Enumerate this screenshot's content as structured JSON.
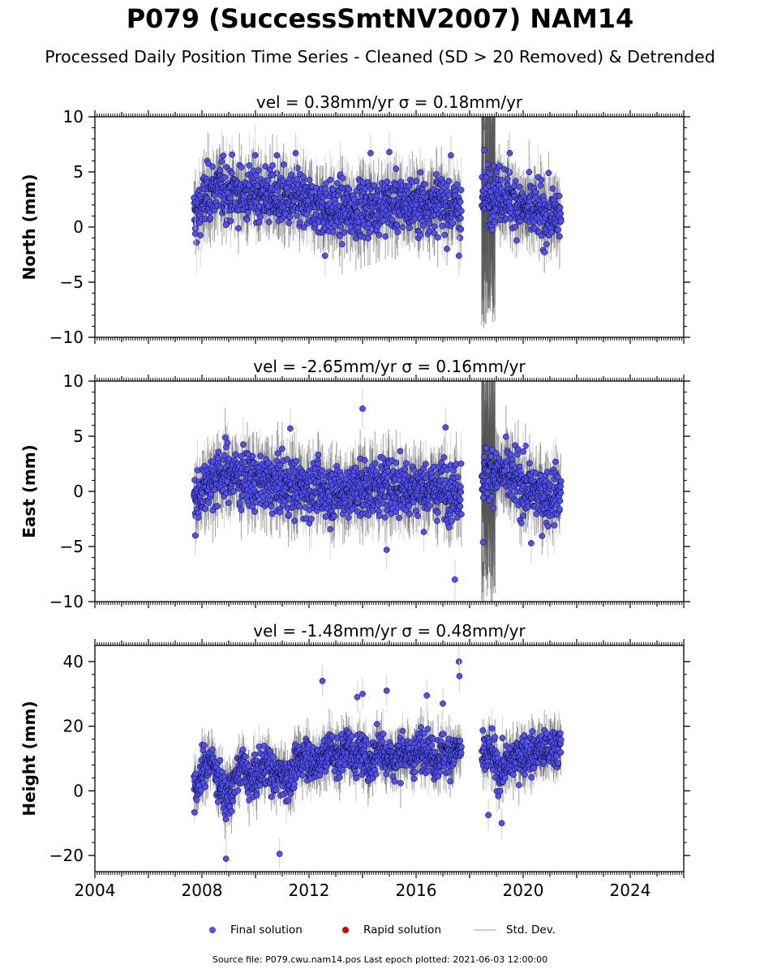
{
  "figure": {
    "title": "P079 (SuccessSmtNV2007) NAM14",
    "subtitle": "Processed Daily Position Time Series - Cleaned (SD > 20 Removed) & Detrended",
    "source_note": "Source file: P079.cwu.nam14.pos  Last epoch plotted: 2021-06-03 12:00:00"
  },
  "legend": {
    "items": [
      {
        "label": "Final solution",
        "kind": "dot",
        "color": "#4f4ff5"
      },
      {
        "label": "Rapid solution",
        "kind": "dot",
        "color": "#dd0000"
      },
      {
        "label": "Std. Dev.",
        "kind": "line",
        "color": "#cfcfcf"
      }
    ]
  },
  "colors": {
    "marker_fill": "#4f4ff5",
    "marker_edge": "#000000",
    "errorbar_dark": "#555555",
    "errorbar_light": "#cfcfcf"
  },
  "chart_data": [
    {
      "type": "scatter",
      "title": "vel = 0.38mm/yr   σ = 0.18mm/yr",
      "ylabel": "North (mm)",
      "ylim": [
        -10,
        10
      ],
      "yticks": [
        -10,
        -5,
        0,
        5,
        10
      ],
      "xlim": [
        2004,
        2026
      ],
      "xticks": [],
      "data_span": [
        2007.7,
        2021.42
      ],
      "gap": [
        2017.7,
        2018.45
      ],
      "series": [
        {
          "name": "Final solution",
          "x": [
            2007.8,
            2008.2,
            2008.6,
            2009.0,
            2009.5,
            2010.0,
            2010.5,
            2011.0,
            2011.5,
            2012.0,
            2012.5,
            2013.0,
            2013.5,
            2014.0,
            2014.5,
            2015.0,
            2015.5,
            2016.0,
            2016.5,
            2017.0,
            2017.5,
            2018.5,
            2018.9,
            2019.3,
            2019.7,
            2020.1,
            2020.5,
            2020.9,
            2021.3
          ],
          "y": [
            1.0,
            3.0,
            3.5,
            3.2,
            3.0,
            3.1,
            2.8,
            2.5,
            2.4,
            2.0,
            1.8,
            1.6,
            1.6,
            1.7,
            1.9,
            2.1,
            2.1,
            2.0,
            2.2,
            2.0,
            1.8,
            2.5,
            3.2,
            3.0,
            2.2,
            1.5,
            1.3,
            1.0,
            1.0
          ]
        }
      ],
      "outliers": [
        [
          2007.75,
          -0.6
        ],
        [
          2008.9,
          0.2
        ],
        [
          2010.8,
          6.5
        ],
        [
          2011.5,
          6.7
        ],
        [
          2012.6,
          -2.6
        ],
        [
          2014.3,
          6.7
        ],
        [
          2015.0,
          6.8
        ],
        [
          2017.3,
          6.5
        ],
        [
          2017.6,
          -2.6
        ],
        [
          2018.55,
          7.0
        ],
        [
          2019.5,
          6.7
        ]
      ],
      "std_dev_range": [
        1.5,
        3.0
      ],
      "noisy_segment": {
        "x": [
          2018.45,
          2018.95
        ],
        "range": [
          -10,
          10
        ]
      }
    },
    {
      "type": "scatter",
      "title": "vel = -2.65mm/yr   σ = 0.16mm/yr",
      "ylabel": "East (mm)",
      "ylim": [
        -10,
        10
      ],
      "yticks": [
        -10,
        -5,
        0,
        5,
        10
      ],
      "xlim": [
        2004,
        2026
      ],
      "xticks": [],
      "data_span": [
        2007.7,
        2021.42
      ],
      "gap": [
        2017.7,
        2018.45
      ],
      "series": [
        {
          "name": "Final solution",
          "x": [
            2007.8,
            2008.2,
            2008.6,
            2009.0,
            2009.5,
            2010.0,
            2010.5,
            2011.0,
            2011.5,
            2012.0,
            2012.5,
            2013.0,
            2013.5,
            2014.0,
            2014.5,
            2015.0,
            2015.5,
            2016.0,
            2016.5,
            2017.0,
            2017.5,
            2018.5,
            2018.9,
            2019.3,
            2019.7,
            2020.1,
            2020.5,
            2020.9,
            2021.3
          ],
          "y": [
            -0.5,
            0.8,
            1.4,
            1.6,
            1.3,
            0.9,
            0.7,
            0.5,
            0.4,
            0.3,
            0.1,
            -0.1,
            0.0,
            0.3,
            0.4,
            0.5,
            0.4,
            0.3,
            0.2,
            0.2,
            0.0,
            1.5,
            1.8,
            1.5,
            0.9,
            0.2,
            -0.2,
            -0.4,
            -0.2
          ]
        }
      ],
      "outliers": [
        [
          2007.75,
          -4.0
        ],
        [
          2011.3,
          5.7
        ],
        [
          2014.0,
          7.5
        ],
        [
          2014.9,
          -5.3
        ],
        [
          2017.1,
          5.8
        ],
        [
          2017.45,
          -8.0
        ],
        [
          2018.5,
          -4.6
        ],
        [
          2020.3,
          -4.7
        ],
        [
          2020.0,
          3.6
        ]
      ],
      "std_dev_range": [
        1.5,
        3.0
      ],
      "noisy_segment": {
        "x": [
          2018.45,
          2018.95
        ],
        "range": [
          -10,
          10
        ]
      }
    },
    {
      "type": "scatter",
      "title": "vel = -1.48mm/yr   σ = 0.48mm/yr",
      "ylabel": "Height (mm)",
      "ylim": [
        -25,
        45
      ],
      "yticks": [
        -20,
        0,
        20,
        40
      ],
      "xlim": [
        2004,
        2026
      ],
      "xticks": [
        2004,
        2008,
        2012,
        2016,
        2020,
        2024
      ],
      "data_span": [
        2007.7,
        2021.42
      ],
      "gap": [
        2017.7,
        2018.45
      ],
      "series": [
        {
          "name": "Final solution",
          "x": [
            2007.8,
            2008.0,
            2008.3,
            2008.6,
            2008.9,
            2009.2,
            2009.5,
            2009.8,
            2010.1,
            2010.4,
            2010.7,
            2011.0,
            2011.3,
            2011.6,
            2011.9,
            2012.2,
            2012.5,
            2012.8,
            2013.1,
            2013.4,
            2013.7,
            2014.0,
            2014.3,
            2014.6,
            2014.9,
            2015.2,
            2015.5,
            2015.8,
            2016.1,
            2016.4,
            2016.7,
            2017.0,
            2017.3,
            2017.6,
            2018.5,
            2018.8,
            2019.1,
            2019.4,
            2019.7,
            2020.0,
            2020.3,
            2020.6,
            2020.9,
            2021.2
          ],
          "y": [
            0,
            6,
            10,
            4,
            -3,
            2,
            8,
            3,
            5,
            9,
            4,
            6,
            3,
            9,
            12,
            7,
            11,
            13,
            9,
            15,
            10,
            12,
            8,
            14,
            11,
            9,
            13,
            10,
            12,
            14,
            9,
            12,
            11,
            13,
            10,
            12,
            6,
            8,
            10,
            12,
            11,
            13,
            12,
            14
          ]
        }
      ],
      "outliers": [
        [
          2008.9,
          -21
        ],
        [
          2010.9,
          -19.5
        ],
        [
          2012.5,
          34
        ],
        [
          2013.8,
          29
        ],
        [
          2014.0,
          30
        ],
        [
          2014.9,
          31
        ],
        [
          2016.4,
          29.5
        ],
        [
          2017.0,
          27
        ],
        [
          2017.6,
          40
        ],
        [
          2017.62,
          35.5
        ],
        [
          2018.7,
          -7.5
        ],
        [
          2019.2,
          -10
        ]
      ],
      "std_dev_range": [
        3,
        8
      ],
      "noisy_segment": null
    }
  ]
}
